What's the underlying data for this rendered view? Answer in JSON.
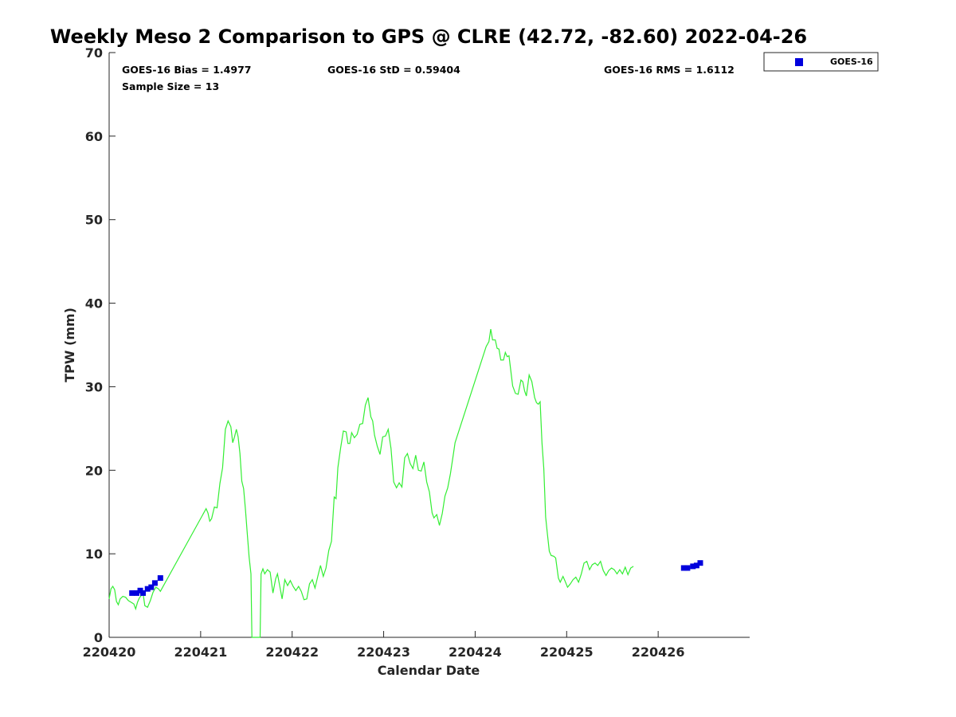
{
  "chart_data": {
    "type": "scatter",
    "title": "Weekly Meso 2 Comparison to GPS @ CLRE (42.72, -82.60) 2022-04-26",
    "xlabel": "Calendar Date",
    "ylabel": "TPW (mm)",
    "xlim": [
      220420,
      220427
    ],
    "ylim": [
      0,
      70
    ],
    "x_ticks": [
      "220420",
      "220421",
      "220422",
      "220423",
      "220424",
      "220425",
      "220426"
    ],
    "y_ticks": [
      "0",
      "10",
      "20",
      "30",
      "40",
      "50",
      "60",
      "70"
    ],
    "grid": false,
    "legend_position": "top-right",
    "stats": {
      "bias": "GOES-16 Bias = 1.4977",
      "std": "GOES-16 StD = 0.59404",
      "rms": "GOES-16 RMS = 1.6112",
      "sample": "Sample Size = 13"
    },
    "series": [
      {
        "name": "GOES-16",
        "type": "scatter",
        "color": "#0000dd",
        "marker": "square",
        "points": [
          [
            220420.25,
            5.3
          ],
          [
            220420.3,
            5.3
          ],
          [
            220420.34,
            5.6
          ],
          [
            220420.37,
            5.3
          ],
          [
            220420.42,
            5.8
          ],
          [
            220420.46,
            6.0
          ],
          [
            220420.5,
            6.5
          ],
          [
            220420.56,
            7.1
          ],
          [
            220426.28,
            8.3
          ],
          [
            220426.32,
            8.3
          ],
          [
            220426.38,
            8.5
          ],
          [
            220426.42,
            8.6
          ],
          [
            220426.46,
            8.9
          ]
        ]
      },
      {
        "type": "line",
        "color": "#33ee33",
        "points": [
          [
            220420.0,
            4.6
          ],
          [
            220420.02,
            5.8
          ],
          [
            220420.04,
            6.1
          ],
          [
            220420.06,
            5.7
          ],
          [
            220420.08,
            4.3
          ],
          [
            220420.1,
            3.9
          ],
          [
            220420.12,
            4.6
          ],
          [
            220420.15,
            4.9
          ],
          [
            220420.18,
            4.8
          ],
          [
            220420.21,
            4.4
          ],
          [
            220420.24,
            4.2
          ],
          [
            220420.27,
            4.0
          ],
          [
            220420.29,
            3.4
          ],
          [
            220420.31,
            4.2
          ],
          [
            220420.33,
            4.7
          ],
          [
            220420.35,
            5.0
          ],
          [
            220420.37,
            5.3
          ],
          [
            220420.39,
            3.8
          ],
          [
            220420.42,
            3.6
          ],
          [
            220420.45,
            4.4
          ],
          [
            220420.48,
            5.4
          ],
          [
            220420.51,
            6.0
          ],
          [
            220420.54,
            5.8
          ],
          [
            220420.56,
            5.5
          ],
          [
            220421.06,
            15.4
          ],
          [
            220421.08,
            14.9
          ],
          [
            220421.1,
            13.9
          ],
          [
            220421.12,
            14.2
          ],
          [
            220421.15,
            15.6
          ],
          [
            220421.18,
            15.5
          ],
          [
            220421.21,
            18.4
          ],
          [
            220421.24,
            20.3
          ],
          [
            220421.27,
            24.9
          ],
          [
            220421.3,
            25.9
          ],
          [
            220421.33,
            25.2
          ],
          [
            220421.35,
            23.3
          ],
          [
            220421.37,
            24.0
          ],
          [
            220421.39,
            24.9
          ],
          [
            220421.41,
            24.0
          ],
          [
            220421.43,
            22.0
          ],
          [
            220421.45,
            18.7
          ],
          [
            220421.47,
            17.8
          ],
          [
            220421.49,
            15.3
          ],
          [
            220421.51,
            12.4
          ],
          [
            220421.53,
            9.6
          ],
          [
            220421.55,
            7.6
          ],
          [
            220421.56,
            0.0
          ],
          [
            220421.65,
            0.0
          ],
          [
            220421.66,
            7.6
          ],
          [
            220421.68,
            8.2
          ],
          [
            220421.7,
            7.6
          ],
          [
            220421.73,
            8.1
          ],
          [
            220421.76,
            7.8
          ],
          [
            220421.79,
            5.3
          ],
          [
            220421.82,
            7.0
          ],
          [
            220421.84,
            7.6
          ],
          [
            220421.87,
            5.8
          ],
          [
            220421.89,
            4.6
          ],
          [
            220421.92,
            6.9
          ],
          [
            220421.95,
            6.2
          ],
          [
            220421.98,
            6.8
          ],
          [
            220422.01,
            6.1
          ],
          [
            220422.04,
            5.6
          ],
          [
            220422.07,
            6.1
          ],
          [
            220422.1,
            5.5
          ],
          [
            220422.13,
            4.5
          ],
          [
            220422.16,
            4.6
          ],
          [
            220422.19,
            6.4
          ],
          [
            220422.22,
            6.9
          ],
          [
            220422.25,
            5.9
          ],
          [
            220422.28,
            7.3
          ],
          [
            220422.31,
            8.6
          ],
          [
            220422.34,
            7.3
          ],
          [
            220422.37,
            8.3
          ],
          [
            220422.4,
            10.4
          ],
          [
            220422.43,
            11.5
          ],
          [
            220422.46,
            16.8
          ],
          [
            220422.48,
            16.6
          ],
          [
            220422.5,
            20.3
          ],
          [
            220422.53,
            22.7
          ],
          [
            220422.56,
            24.7
          ],
          [
            220422.59,
            24.6
          ],
          [
            220422.61,
            23.2
          ],
          [
            220422.63,
            23.2
          ],
          [
            220422.65,
            24.5
          ],
          [
            220422.68,
            23.9
          ],
          [
            220422.71,
            24.3
          ],
          [
            220422.74,
            25.5
          ],
          [
            220422.77,
            25.6
          ],
          [
            220422.8,
            27.8
          ],
          [
            220422.83,
            28.7
          ],
          [
            220422.86,
            26.4
          ],
          [
            220422.88,
            25.9
          ],
          [
            220422.9,
            24.2
          ],
          [
            220422.93,
            22.9
          ],
          [
            220422.96,
            21.9
          ],
          [
            220422.99,
            24.0
          ],
          [
            220423.02,
            24.1
          ],
          [
            220423.05,
            24.9
          ],
          [
            220423.08,
            22.6
          ],
          [
            220423.11,
            18.6
          ],
          [
            220423.14,
            17.9
          ],
          [
            220423.17,
            18.5
          ],
          [
            220423.2,
            18.0
          ],
          [
            220423.23,
            21.5
          ],
          [
            220423.26,
            22.0
          ],
          [
            220423.29,
            20.8
          ],
          [
            220423.32,
            20.2
          ],
          [
            220423.35,
            21.8
          ],
          [
            220423.38,
            20.0
          ],
          [
            220423.41,
            19.9
          ],
          [
            220423.44,
            21.0
          ],
          [
            220423.47,
            18.6
          ],
          [
            220423.5,
            17.4
          ],
          [
            220423.53,
            14.9
          ],
          [
            220423.55,
            14.3
          ],
          [
            220423.58,
            14.7
          ],
          [
            220423.61,
            13.4
          ],
          [
            220423.64,
            14.8
          ],
          [
            220423.67,
            16.9
          ],
          [
            220423.7,
            17.9
          ],
          [
            220423.73,
            19.6
          ],
          [
            220423.76,
            21.8
          ],
          [
            220423.78,
            23.3
          ],
          [
            220424.12,
            34.8
          ],
          [
            220424.15,
            35.4
          ],
          [
            220424.17,
            36.9
          ],
          [
            220424.19,
            35.6
          ],
          [
            220424.22,
            35.6
          ],
          [
            220424.24,
            34.6
          ],
          [
            220424.26,
            34.5
          ],
          [
            220424.28,
            33.2
          ],
          [
            220424.31,
            33.2
          ],
          [
            220424.33,
            34.1
          ],
          [
            220424.35,
            33.6
          ],
          [
            220424.37,
            33.7
          ],
          [
            220424.39,
            31.9
          ],
          [
            220424.41,
            30.1
          ],
          [
            220424.44,
            29.2
          ],
          [
            220424.47,
            29.1
          ],
          [
            220424.5,
            30.8
          ],
          [
            220424.52,
            30.6
          ],
          [
            220424.54,
            29.5
          ],
          [
            220424.56,
            28.9
          ],
          [
            220424.59,
            31.4
          ],
          [
            220424.62,
            30.6
          ],
          [
            220424.65,
            28.7
          ],
          [
            220424.67,
            28.1
          ],
          [
            220424.69,
            27.9
          ],
          [
            220424.71,
            28.2
          ],
          [
            220424.73,
            23.3
          ],
          [
            220424.75,
            20.2
          ],
          [
            220424.77,
            14.4
          ],
          [
            220424.79,
            12.3
          ],
          [
            220424.81,
            10.3
          ],
          [
            220424.83,
            9.8
          ],
          [
            220424.86,
            9.7
          ],
          [
            220424.88,
            9.5
          ],
          [
            220424.91,
            7.1
          ],
          [
            220424.93,
            6.6
          ],
          [
            220424.96,
            7.3
          ],
          [
            220424.98,
            6.8
          ],
          [
            220425.01,
            6.0
          ],
          [
            220425.04,
            6.4
          ],
          [
            220425.07,
            6.9
          ],
          [
            220425.1,
            7.2
          ],
          [
            220425.13,
            6.6
          ],
          [
            220425.16,
            7.6
          ],
          [
            220425.19,
            8.9
          ],
          [
            220425.22,
            9.1
          ],
          [
            220425.25,
            8.1
          ],
          [
            220425.28,
            8.7
          ],
          [
            220425.31,
            8.9
          ],
          [
            220425.34,
            8.6
          ],
          [
            220425.37,
            9.1
          ],
          [
            220425.4,
            8.0
          ],
          [
            220425.43,
            7.4
          ],
          [
            220425.46,
            8.0
          ],
          [
            220425.49,
            8.3
          ],
          [
            220425.52,
            8.1
          ],
          [
            220425.55,
            7.6
          ],
          [
            220425.58,
            8.1
          ],
          [
            220425.61,
            7.6
          ],
          [
            220425.64,
            8.4
          ],
          [
            220425.67,
            7.5
          ],
          [
            220425.7,
            8.3
          ],
          [
            220425.73,
            8.5
          ]
        ]
      }
    ]
  }
}
